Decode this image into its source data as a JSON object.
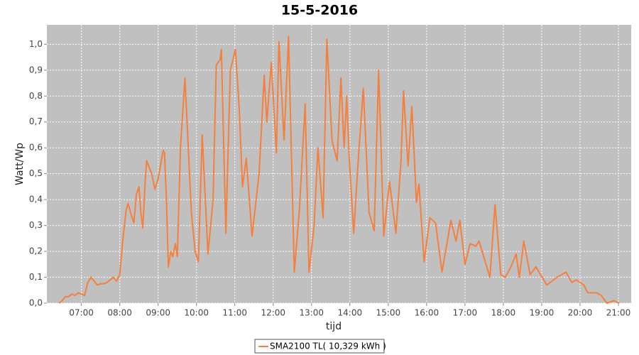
{
  "chart_data": {
    "type": "line",
    "title": "15-5-2016",
    "x_label": "tijd",
    "y_label": "Watt/Wp",
    "xlim": [
      "06:06",
      "21:20"
    ],
    "xticks": [
      "07:00",
      "08:00",
      "09:00",
      "10:00",
      "11:00",
      "12:00",
      "13:00",
      "14:00",
      "15:00",
      "16:00",
      "17:00",
      "18:00",
      "19:00",
      "20:00",
      "21:00"
    ],
    "ylim": [
      0,
      1.075
    ],
    "yticks": [
      {
        "value": 0,
        "label": "0,0"
      },
      {
        "value": 0.1,
        "label": "0,1"
      },
      {
        "value": 0.2,
        "label": "0,2"
      },
      {
        "value": 0.3,
        "label": "0,3"
      },
      {
        "value": 0.4,
        "label": "0,4"
      },
      {
        "value": 0.5,
        "label": "0,5"
      },
      {
        "value": 0.6,
        "label": "0,6"
      },
      {
        "value": 0.7,
        "label": "0,7"
      },
      {
        "value": 0.8,
        "label": "0,8"
      },
      {
        "value": 0.9,
        "label": "0,9"
      },
      {
        "value": 1.0,
        "label": "1,0"
      }
    ],
    "grid": true,
    "x": [
      "06:25",
      "06:30",
      "06:35",
      "06:40",
      "06:45",
      "06:50",
      "06:55",
      "07:00",
      "07:05",
      "07:10",
      "07:15",
      "07:20",
      "07:25",
      "07:30",
      "07:35",
      "07:40",
      "07:45",
      "07:50",
      "07:55",
      "08:00",
      "08:05",
      "08:10",
      "08:13",
      "08:18",
      "08:22",
      "08:26",
      "08:30",
      "08:33",
      "08:36",
      "08:40",
      "08:42",
      "08:50",
      "08:55",
      "09:00",
      "09:05",
      "09:08",
      "09:10",
      "09:13",
      "09:16",
      "09:20",
      "09:23",
      "09:27",
      "09:30",
      "09:35",
      "09:42",
      "09:52",
      "09:58",
      "10:03",
      "10:09",
      "10:18",
      "10:26",
      "10:31",
      "10:37",
      "10:39",
      "10:46",
      "10:53",
      "11:01",
      "11:07",
      "11:12",
      "11:18",
      "11:27",
      "11:38",
      "11:46",
      "11:50",
      "11:57",
      "12:05",
      "12:09",
      "12:17",
      "12:24",
      "12:33",
      "12:41",
      "12:50",
      "12:56",
      "13:04",
      "13:10",
      "13:18",
      "13:24",
      "13:32",
      "13:40",
      "13:46",
      "13:51",
      "13:55",
      "13:59",
      "14:06",
      "14:13",
      "14:21",
      "14:30",
      "14:38",
      "14:45",
      "14:53",
      "15:02",
      "15:12",
      "15:20",
      "15:24",
      "15:31",
      "15:37",
      "15:44",
      "15:48",
      "15:56",
      "16:05",
      "16:14",
      "16:24",
      "16:38",
      "16:46",
      "16:52",
      "17:00",
      "17:08",
      "17:17",
      "17:22",
      "17:39",
      "17:47",
      "17:56",
      "18:03",
      "18:12",
      "18:20",
      "18:25",
      "18:32",
      "18:42",
      "18:51",
      "19:08",
      "19:24",
      "19:38",
      "19:47",
      "19:54",
      "20:06",
      "20:12",
      "20:26",
      "20:33",
      "20:42",
      "20:53",
      "21:01"
    ],
    "series": [
      {
        "name": "SMA2100 TL( 10,329 kWh )",
        "color": "#f5803e",
        "values": [
          0.0,
          0.01,
          0.025,
          0.025,
          0.035,
          0.03,
          0.04,
          0.035,
          0.03,
          0.08,
          0.1,
          0.085,
          0.07,
          0.075,
          0.075,
          0.08,
          0.09,
          0.1,
          0.085,
          0.11,
          0.25,
          0.36,
          0.385,
          0.34,
          0.31,
          0.42,
          0.45,
          0.35,
          0.29,
          0.48,
          0.55,
          0.5,
          0.44,
          0.48,
          0.55,
          0.59,
          0.58,
          0.4,
          0.14,
          0.2,
          0.18,
          0.23,
          0.18,
          0.6,
          0.87,
          0.35,
          0.2,
          0.16,
          0.65,
          0.19,
          0.4,
          0.92,
          0.94,
          0.98,
          0.27,
          0.9,
          0.98,
          0.75,
          0.45,
          0.56,
          0.26,
          0.5,
          0.88,
          0.7,
          0.93,
          0.58,
          1.01,
          0.63,
          1.03,
          0.12,
          0.36,
          0.77,
          0.12,
          0.3,
          0.6,
          0.33,
          1.02,
          0.63,
          0.55,
          0.87,
          0.6,
          0.8,
          0.56,
          0.27,
          0.55,
          0.83,
          0.35,
          0.28,
          0.9,
          0.26,
          0.47,
          0.27,
          0.55,
          0.82,
          0.53,
          0.76,
          0.39,
          0.46,
          0.16,
          0.33,
          0.31,
          0.12,
          0.32,
          0.24,
          0.32,
          0.15,
          0.23,
          0.22,
          0.24,
          0.1,
          0.38,
          0.11,
          0.1,
          0.14,
          0.19,
          0.1,
          0.24,
          0.11,
          0.14,
          0.07,
          0.1,
          0.12,
          0.08,
          0.09,
          0.07,
          0.04,
          0.04,
          0.03,
          0.0,
          0.01,
          0.0
        ]
      }
    ]
  }
}
